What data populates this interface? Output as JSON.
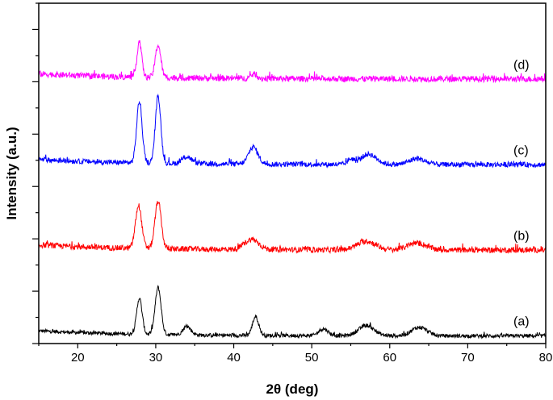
{
  "chart_data": {
    "type": "line",
    "xlabel": "2θ (deg)",
    "ylabel": "Intensity (a.u.)",
    "xlim": [
      15,
      80
    ],
    "xticks": [
      20,
      30,
      40,
      50,
      60,
      70,
      80
    ],
    "y_ticks_labeled": false,
    "grid": false,
    "legend": "none; each trace labeled at its right end",
    "series": [
      {
        "label": "(a)",
        "color": "#000000",
        "baseline": 0.0,
        "noise": 0.045,
        "peaks": [
          {
            "x": 27.9,
            "height": 0.42,
            "width": 0.35
          },
          {
            "x": 30.3,
            "height": 0.55,
            "width": 0.38
          },
          {
            "x": 34.0,
            "height": 0.1,
            "width": 0.5
          },
          {
            "x": 42.8,
            "height": 0.22,
            "width": 0.4
          },
          {
            "x": 51.5,
            "height": 0.08,
            "width": 0.6
          },
          {
            "x": 57.0,
            "height": 0.12,
            "width": 1.0
          },
          {
            "x": 63.8,
            "height": 0.1,
            "width": 1.0
          }
        ]
      },
      {
        "label": "(b)",
        "color": "#ff0000",
        "baseline": 1.0,
        "noise": 0.065,
        "peaks": [
          {
            "x": 27.8,
            "height": 0.5,
            "width": 0.4
          },
          {
            "x": 30.3,
            "height": 0.55,
            "width": 0.4
          },
          {
            "x": 42.3,
            "height": 0.12,
            "width": 0.9
          },
          {
            "x": 57.0,
            "height": 0.1,
            "width": 1.2
          },
          {
            "x": 63.5,
            "height": 0.08,
            "width": 1.2
          }
        ]
      },
      {
        "label": "(c)",
        "color": "#0000ff",
        "baseline": 2.0,
        "noise": 0.06,
        "peaks": [
          {
            "x": 27.9,
            "height": 0.72,
            "width": 0.35
          },
          {
            "x": 30.3,
            "height": 0.78,
            "width": 0.35
          },
          {
            "x": 34.0,
            "height": 0.08,
            "width": 0.6
          },
          {
            "x": 42.5,
            "height": 0.2,
            "width": 0.6
          },
          {
            "x": 55.0,
            "height": 0.06,
            "width": 0.4
          },
          {
            "x": 57.3,
            "height": 0.12,
            "width": 1.0
          },
          {
            "x": 63.5,
            "height": 0.07,
            "width": 1.0
          }
        ]
      },
      {
        "label": "(d)",
        "color": "#ff00ff",
        "baseline": 3.0,
        "noise": 0.07,
        "peaks": [
          {
            "x": 27.9,
            "height": 0.42,
            "width": 0.3
          },
          {
            "x": 30.3,
            "height": 0.38,
            "width": 0.35
          },
          {
            "x": 42.6,
            "height": 0.05,
            "width": 0.4
          }
        ]
      }
    ]
  }
}
